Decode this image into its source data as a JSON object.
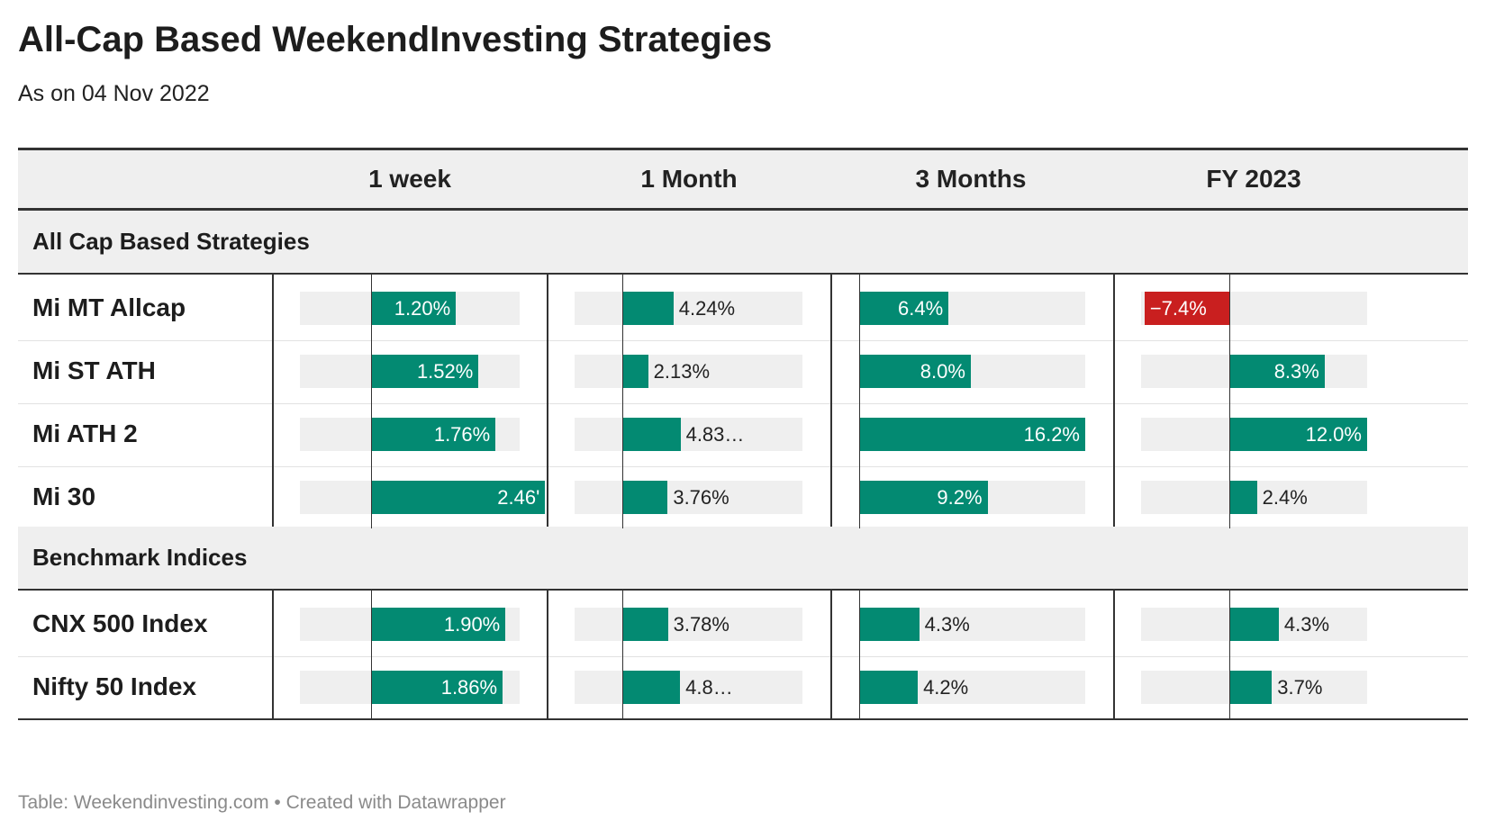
{
  "title": "All-Cap Based WeekendInvesting Strategies",
  "subtitle": "As on 04 Nov 2022",
  "source": "Table: Weekendinvesting.com • Created with Datawrapper",
  "colors": {
    "positive": "#038a72",
    "negative": "#c91f1f",
    "bar_background": "#efefef",
    "header_background": "#efefef"
  },
  "chart_data": {
    "type": "table",
    "columns": [
      "1 week",
      "1 Month",
      "3 Months",
      "FY 2023"
    ],
    "unit": "%",
    "groups": [
      {
        "name": "All Cap Based Strategies",
        "rows": [
          {
            "label": "Mi MT Allcap",
            "values": [
              1.2,
              4.24,
              6.4,
              -7.4
            ],
            "labels": [
              "1.20%",
              "4.24%",
              "6.4%",
              "−7.4%"
            ]
          },
          {
            "label": "Mi ST ATH",
            "values": [
              1.52,
              2.13,
              8.0,
              8.3
            ],
            "labels": [
              "1.52%",
              "2.13%",
              "8.0%",
              "8.3%"
            ]
          },
          {
            "label": "Mi ATH 2",
            "values": [
              1.76,
              4.83,
              16.2,
              12.0
            ],
            "labels": [
              "1.76%",
              "4.83…",
              "16.2%",
              "12.0%"
            ]
          },
          {
            "label": "Mi 30",
            "values": [
              2.46,
              3.76,
              9.2,
              2.4
            ],
            "labels": [
              "2.46'",
              "3.76%",
              "9.2%",
              "2.4%"
            ]
          }
        ]
      },
      {
        "name": "Benchmark Indices",
        "rows": [
          {
            "label": "CNX 500 Index",
            "values": [
              1.9,
              3.78,
              4.3,
              4.3
            ],
            "labels": [
              "1.90%",
              "3.78%",
              "4.3%",
              "4.3%"
            ]
          },
          {
            "label": "Nifty 50 Index",
            "values": [
              1.86,
              4.8,
              4.2,
              3.7
            ],
            "labels": [
              "1.86%",
              "4.8…",
              "4.2%",
              "3.7%"
            ]
          }
        ]
      }
    ],
    "column_ranges": [
      [
        -1.0,
        2.1
      ],
      [
        -4.0,
        15.0
      ],
      [
        0,
        16.2
      ],
      [
        -7.7,
        12.0
      ]
    ]
  }
}
